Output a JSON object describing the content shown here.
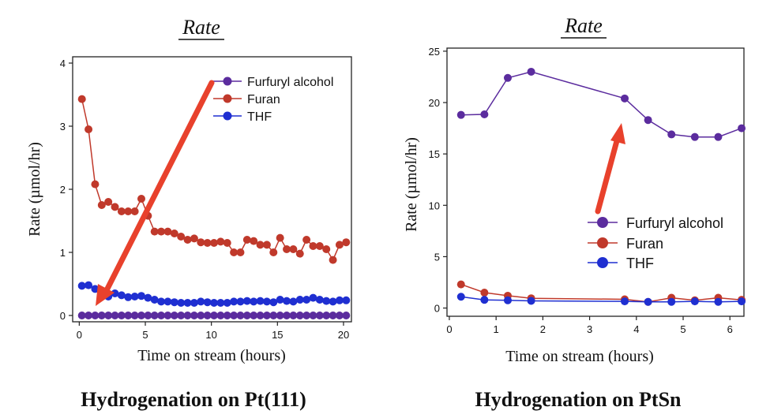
{
  "chart_data": [
    {
      "type": "line",
      "title": "Rate",
      "caption": "Hydrogenation on Pt(111)",
      "xlabel": "Time on stream (hours)",
      "ylabel": "Rate (µmol/hr)",
      "xlim": [
        -0.5,
        20.6
      ],
      "ylim": [
        -0.1,
        4.1
      ],
      "xticks": [
        0,
        5,
        10,
        15,
        20
      ],
      "yticks": [
        0,
        1,
        2,
        3,
        4
      ],
      "grid": false,
      "legend_position": "top-right",
      "annotation": "red arrow pointing down toward the Furfuryl alcohol baseline",
      "series": [
        {
          "name": "Furfuryl alcohol",
          "color": "#5b2c9e",
          "x": [
            0.2,
            0.7,
            1.2,
            1.7,
            2.2,
            2.7,
            3.2,
            3.7,
            4.2,
            4.7,
            5.2,
            5.7,
            6.2,
            6.7,
            7.2,
            7.7,
            8.2,
            8.7,
            9.2,
            9.7,
            10.2,
            10.7,
            11.2,
            11.7,
            12.2,
            12.7,
            13.2,
            13.7,
            14.2,
            14.7,
            15.2,
            15.7,
            16.2,
            16.7,
            17.2,
            17.7,
            18.2,
            18.7,
            19.2,
            19.7,
            20.2
          ],
          "y": [
            0,
            0,
            0,
            0,
            0,
            0,
            0,
            0,
            0,
            0,
            0,
            0,
            0,
            0,
            0,
            0,
            0,
            0,
            0,
            0,
            0,
            0,
            0,
            0,
            0,
            0,
            0,
            0,
            0,
            0,
            0,
            0,
            0,
            0,
            0,
            0,
            0,
            0,
            0,
            0,
            0
          ]
        },
        {
          "name": "Furan",
          "color": "#c0392b",
          "x": [
            0.2,
            0.7,
            1.2,
            1.7,
            2.2,
            2.7,
            3.2,
            3.7,
            4.2,
            4.7,
            5.2,
            5.7,
            6.2,
            6.7,
            7.2,
            7.7,
            8.2,
            8.7,
            9.2,
            9.7,
            10.2,
            10.7,
            11.2,
            11.7,
            12.2,
            12.7,
            13.2,
            13.7,
            14.2,
            14.7,
            15.2,
            15.7,
            16.2,
            16.7,
            17.2,
            17.7,
            18.2,
            18.7,
            19.2,
            19.7,
            20.2
          ],
          "y": [
            3.43,
            2.95,
            2.08,
            1.75,
            1.8,
            1.72,
            1.65,
            1.65,
            1.65,
            1.85,
            1.58,
            1.33,
            1.33,
            1.33,
            1.3,
            1.25,
            1.2,
            1.22,
            1.16,
            1.15,
            1.15,
            1.17,
            1.15,
            1.0,
            1.0,
            1.2,
            1.18,
            1.12,
            1.12,
            1.0,
            1.23,
            1.05,
            1.05,
            0.98,
            1.2,
            1.1,
            1.1,
            1.05,
            0.88,
            1.12,
            1.16
          ]
        },
        {
          "name": "THF",
          "color": "#1f2fd1",
          "x": [
            0.2,
            0.7,
            1.2,
            1.7,
            2.2,
            2.7,
            3.2,
            3.7,
            4.2,
            4.7,
            5.2,
            5.7,
            6.2,
            6.7,
            7.2,
            7.7,
            8.2,
            8.7,
            9.2,
            9.7,
            10.2,
            10.7,
            11.2,
            11.7,
            12.2,
            12.7,
            13.2,
            13.7,
            14.2,
            14.7,
            15.2,
            15.7,
            16.2,
            16.7,
            17.2,
            17.7,
            18.2,
            18.7,
            19.2,
            19.7,
            20.2
          ],
          "y": [
            0.47,
            0.48,
            0.42,
            0.38,
            0.3,
            0.35,
            0.32,
            0.29,
            0.3,
            0.31,
            0.28,
            0.25,
            0.22,
            0.22,
            0.21,
            0.2,
            0.2,
            0.2,
            0.22,
            0.21,
            0.2,
            0.2,
            0.2,
            0.22,
            0.22,
            0.23,
            0.22,
            0.23,
            0.22,
            0.21,
            0.25,
            0.23,
            0.22,
            0.25,
            0.25,
            0.28,
            0.25,
            0.23,
            0.22,
            0.24,
            0.24
          ]
        }
      ]
    },
    {
      "type": "line",
      "title": "Rate",
      "caption": "Hydrogenation on PtSn",
      "xlabel": "Time on stream (hours)",
      "ylabel": "Rate (µmol/hr)",
      "xlim": [
        -0.05,
        6.3
      ],
      "ylim": [
        -0.8,
        25.3
      ],
      "xticks": [
        0,
        1,
        2,
        3,
        4,
        5,
        6
      ],
      "yticks": [
        0,
        5,
        10,
        15,
        20,
        25
      ],
      "grid": false,
      "legend_position": "bottom-right",
      "annotation": "red arrow pointing up toward the Furfuryl alcohol curve",
      "series": [
        {
          "name": "Furfuryl alcohol",
          "color": "#5b2c9e",
          "x": [
            0.25,
            0.75,
            1.25,
            1.75,
            3.75,
            4.25,
            4.75,
            5.25,
            5.75,
            6.25
          ],
          "y": [
            18.8,
            18.85,
            22.4,
            23.0,
            20.4,
            18.3,
            16.9,
            16.65,
            16.65,
            17.5
          ]
        },
        {
          "name": "Furan",
          "color": "#c0392b",
          "x": [
            0.25,
            0.75,
            1.25,
            1.75,
            3.75,
            4.25,
            4.75,
            5.25,
            5.75,
            6.25
          ],
          "y": [
            2.3,
            1.5,
            1.2,
            0.95,
            0.85,
            0.6,
            1.0,
            0.75,
            1.0,
            0.8
          ]
        },
        {
          "name": "THF",
          "color": "#1f2fd1",
          "x": [
            0.25,
            0.75,
            1.25,
            1.75,
            3.75,
            4.25,
            4.75,
            5.25,
            5.75,
            6.25
          ],
          "y": [
            1.1,
            0.8,
            0.75,
            0.7,
            0.65,
            0.6,
            0.6,
            0.65,
            0.6,
            0.65
          ]
        }
      ]
    }
  ]
}
